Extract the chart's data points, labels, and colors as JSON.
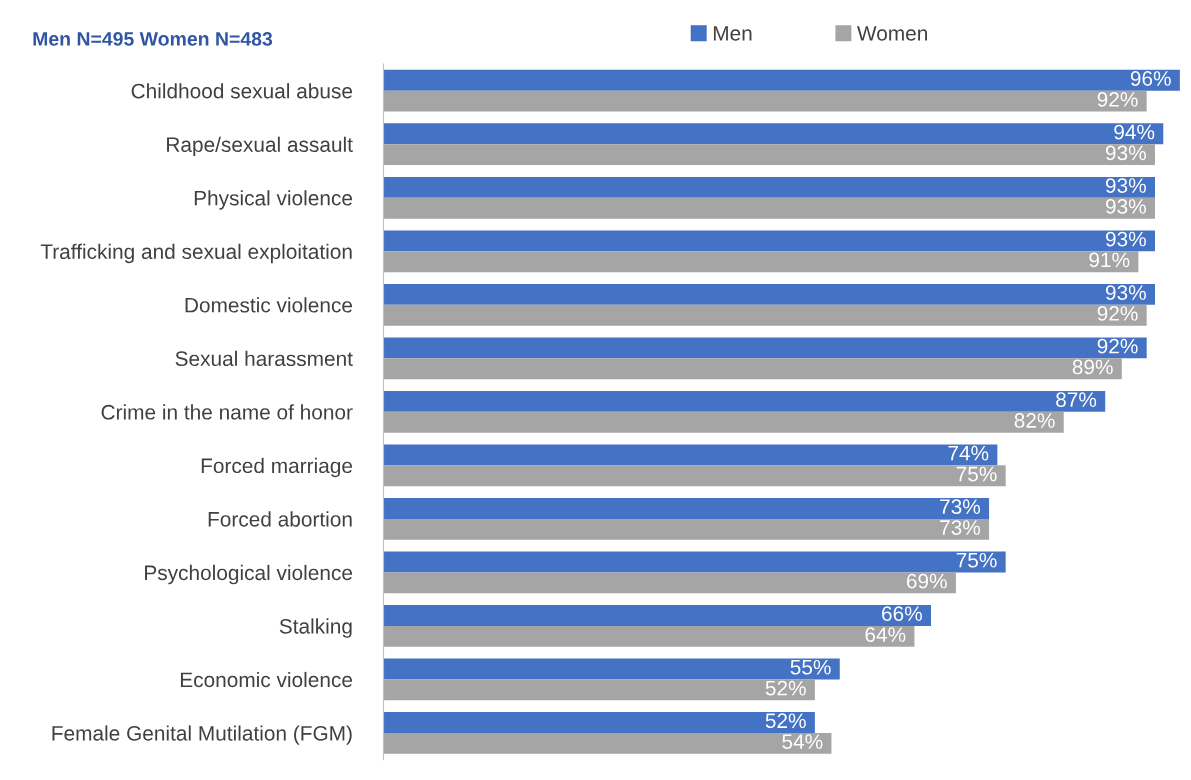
{
  "chart_data": {
    "type": "bar",
    "orientation": "horizontal",
    "title": "Men N=495 Women N=483",
    "categories": [
      "Childhood sexual abuse",
      "Rape/sexual assault",
      "Physical violence",
      "Trafficking and sexual exploitation",
      "Domestic violence",
      "Sexual harassment",
      "Crime in the name of honor",
      "Forced marriage",
      "Forced abortion",
      "Psychological violence",
      "Stalking",
      "Economic violence",
      "Female Genital Mutilation (FGM)"
    ],
    "series": [
      {
        "name": "Men",
        "color": "#4472c4",
        "values": [
          96,
          94,
          93,
          93,
          93,
          92,
          87,
          74,
          73,
          75,
          66,
          55,
          52
        ],
        "value_labels": [
          "96%",
          "94%",
          "93%",
          "93%",
          "93%",
          "92%",
          "87%",
          "74%",
          "73%",
          "75%",
          "66%",
          "55%",
          "52%"
        ]
      },
      {
        "name": "Women",
        "color": "#a5a5a5",
        "values": [
          92,
          93,
          93,
          91,
          92,
          89,
          82,
          75,
          73,
          69,
          64,
          52,
          54
        ],
        "value_labels": [
          "92%",
          "93%",
          "93%",
          "91%",
          "92%",
          "89%",
          "82%",
          "75%",
          "73%",
          "69%",
          "64%",
          "52%",
          "54%"
        ]
      }
    ],
    "legend": "top",
    "grid": false,
    "tick_labels": "y"
  }
}
